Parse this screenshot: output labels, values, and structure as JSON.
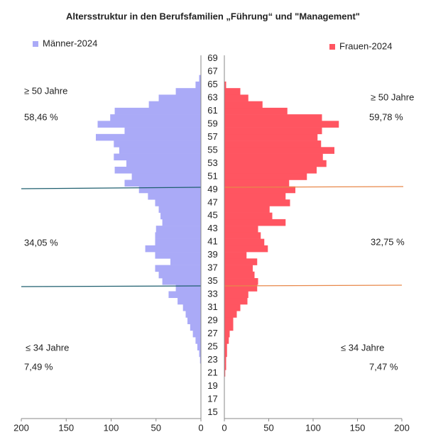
{
  "chart_data": {
    "type": "pyramid",
    "title": "Altersstruktur in den Berufsfamilien „Führung“ und \"Management\"",
    "categories": [
      "15",
      null,
      "17",
      null,
      "19",
      null,
      "21",
      null,
      "23",
      null,
      "25",
      null,
      "27",
      null,
      "29",
      null,
      "31",
      null,
      "33",
      null,
      "35",
      null,
      "37",
      null,
      "39",
      null,
      "41",
      null,
      "43",
      null,
      "45",
      null,
      "47",
      null,
      "49",
      null,
      "51",
      null,
      "53",
      null,
      "55",
      null,
      "57",
      null,
      "59",
      null,
      "61",
      null,
      "63",
      null,
      "65",
      null,
      "67",
      null,
      "69"
    ],
    "series": [
      {
        "name": "Männer-2024",
        "color": "#aaaaf7",
        "side": "left",
        "values": [
          0,
          0,
          0,
          0,
          0,
          0,
          0,
          0,
          1,
          2,
          4,
          6,
          9,
          12,
          15,
          17,
          20,
          26,
          36,
          28,
          43,
          47,
          51,
          34,
          51,
          62,
          51,
          51,
          50,
          43,
          45,
          47,
          51,
          59,
          69,
          85,
          77,
          96,
          83,
          97,
          91,
          97,
          117,
          85,
          115,
          101,
          96,
          58,
          47,
          28,
          6,
          2,
          0,
          0,
          0
        ]
      },
      {
        "name": "Frauen-2024",
        "color": "#ff5561",
        "side": "right",
        "values": [
          0,
          0,
          0,
          0,
          0,
          0,
          1,
          2,
          2,
          3,
          3,
          5,
          6,
          10,
          10,
          14,
          18,
          26,
          27,
          37,
          38,
          34,
          32,
          37,
          25,
          49,
          45,
          41,
          38,
          69,
          54,
          51,
          74,
          69,
          80,
          73,
          93,
          104,
          115,
          111,
          124,
          109,
          105,
          110,
          129,
          110,
          71,
          43,
          27,
          18,
          2,
          0,
          0,
          0,
          0
        ]
      }
    ],
    "xlim": [
      0,
      200
    ],
    "xticks": [
      0,
      50,
      100,
      150,
      200
    ],
    "annotations": {
      "left": [
        "≥ 50 Jahre",
        "58,46 %",
        "34,05 %",
        "≤ 34 Jahre",
        "7,49 %"
      ],
      "right": [
        "≥ 50 Jahre",
        "59,78 %",
        "32,75 %",
        "≤ 34 Jahre",
        "7,47 %"
      ]
    }
  }
}
